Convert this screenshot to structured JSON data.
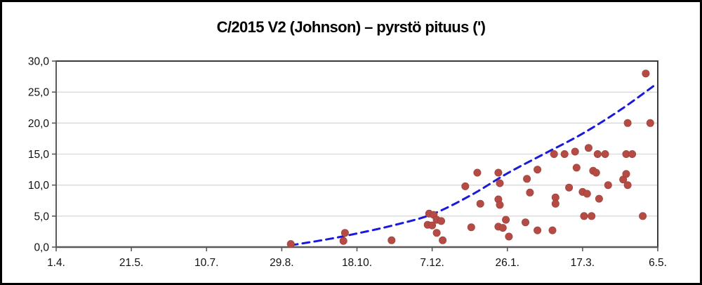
{
  "title": "C/2015 V2 (Johnson) – pyrstö pituus (')",
  "colors": {
    "background": "#ffffff",
    "frame_border": "#000000",
    "plot_border": "#3a3a3a",
    "axis": "#595959",
    "gridline": "#d9d9d9",
    "point_fill": "#b44b44",
    "point_edge": "#9c403b",
    "trend_line": "#1a1ada",
    "label_text": "#111111"
  },
  "chart_data": {
    "type": "scatter",
    "title": "C/2015 V2 (Johnson) – pyrstö pituus (')",
    "xlabel": "",
    "ylabel": "",
    "grid": "horizontal",
    "legend": "none",
    "x_axis": {
      "unit": "date d.m. (50-day intervals)",
      "tick_labels": [
        "1.4.",
        "21.5.",
        "10.7.",
        "29.8.",
        "18.10.",
        "7.12.",
        "26.1.",
        "17.3.",
        "6.5."
      ],
      "tick_days": [
        0,
        50,
        100,
        150,
        200,
        250,
        300,
        350,
        400
      ],
      "range_days": [
        0,
        400
      ]
    },
    "y_axis": {
      "unit": "tail length (arcmin)",
      "tick_labels": [
        "0,0",
        "5,0",
        "10,0",
        "15,0",
        "20,0",
        "25,0",
        "30,0"
      ],
      "tick_values": [
        0,
        5,
        10,
        15,
        20,
        25,
        30
      ],
      "range": [
        0,
        30
      ]
    },
    "series": [
      {
        "name": "observations",
        "type": "scatter",
        "points": [
          [
            156,
            0.5
          ],
          [
            191,
            1.0
          ],
          [
            192,
            2.3
          ],
          [
            223,
            1.1
          ],
          [
            248,
            5.4
          ],
          [
            251,
            5.2
          ],
          [
            247,
            3.6
          ],
          [
            250,
            3.5
          ],
          [
            253,
            4.4
          ],
          [
            256,
            4.2
          ],
          [
            253,
            2.3
          ],
          [
            257,
            1.1
          ],
          [
            272,
            9.8
          ],
          [
            276,
            3.2
          ],
          [
            280,
            12.0
          ],
          [
            282,
            7.0
          ],
          [
            294,
            12.0
          ],
          [
            295,
            10.3
          ],
          [
            294,
            7.7
          ],
          [
            295,
            6.8
          ],
          [
            294,
            3.3
          ],
          [
            297,
            3.1
          ],
          [
            299,
            4.4
          ],
          [
            301,
            1.7
          ],
          [
            313,
            11.0
          ],
          [
            315,
            8.8
          ],
          [
            312,
            4.0
          ],
          [
            320,
            2.7
          ],
          [
            320,
            12.5
          ],
          [
            330,
            2.7
          ],
          [
            332,
            8.0
          ],
          [
            332,
            7.0
          ],
          [
            331,
            15.0
          ],
          [
            338,
            15.0
          ],
          [
            341,
            9.6
          ],
          [
            345,
            15.4
          ],
          [
            346,
            12.8
          ],
          [
            350,
            8.9
          ],
          [
            353,
            8.6
          ],
          [
            354,
            16.0
          ],
          [
            351,
            5.0
          ],
          [
            356,
            5.0
          ],
          [
            357,
            12.3
          ],
          [
            359,
            12.0
          ],
          [
            361,
            7.8
          ],
          [
            360,
            15.0
          ],
          [
            365,
            15.0
          ],
          [
            367,
            10.0
          ],
          [
            377,
            10.9
          ],
          [
            379,
            11.8
          ],
          [
            380,
            10.0
          ],
          [
            379,
            15.0
          ],
          [
            383,
            15.0
          ],
          [
            380,
            20.0
          ],
          [
            390,
            5.0
          ],
          [
            392,
            28.0
          ],
          [
            395,
            20.0
          ]
        ]
      },
      {
        "name": "trend",
        "type": "dashed-line",
        "points": [
          [
            156,
            0.3
          ],
          [
            179,
            1.2
          ],
          [
            200,
            2.2
          ],
          [
            224,
            3.5
          ],
          [
            250,
            5.3
          ],
          [
            276,
            8.4
          ],
          [
            300,
            11.9
          ],
          [
            325,
            15.1
          ],
          [
            350,
            18.3
          ],
          [
            375,
            22.1
          ],
          [
            399,
            26.3
          ]
        ]
      }
    ]
  }
}
